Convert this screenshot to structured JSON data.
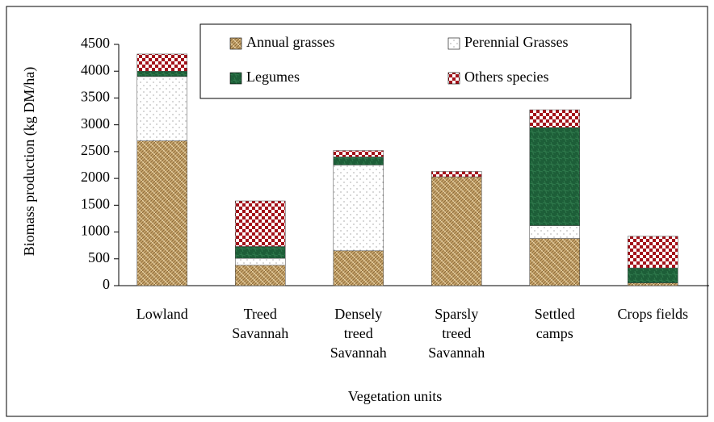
{
  "chart_data": {
    "type": "stacked_bar",
    "x_label": "Vegetation units",
    "y_label": "Biomass production (kg DM/ha)",
    "categories": [
      "Lowland",
      "Treed\nSavannah",
      "Densely\ntreed\nSavannah",
      "Sparsly\ntreed\nSavannah",
      "Settled\ncamps",
      "Crops fields"
    ],
    "series": [
      {
        "name": "Annual grasses",
        "color": "#c8a56c",
        "values": [
          2700,
          380,
          650,
          2030,
          880,
          50
        ]
      },
      {
        "name": "Perennial Grasses",
        "color": "#ffffff",
        "values": [
          1200,
          130,
          1600,
          0,
          240,
          0
        ]
      },
      {
        "name": "Legumes",
        "color": "#1d5e38",
        "values": [
          100,
          220,
          150,
          0,
          1830,
          280
        ]
      },
      {
        "name": "Others species",
        "color": "#a3121a",
        "values": [
          320,
          850,
          120,
          100,
          330,
          590
        ]
      }
    ],
    "ylim": [
      0,
      4500
    ],
    "yticks": [
      0,
      500,
      1000,
      1500,
      2000,
      2500,
      3000,
      3500,
      4000,
      4500
    ],
    "legend": "top"
  }
}
